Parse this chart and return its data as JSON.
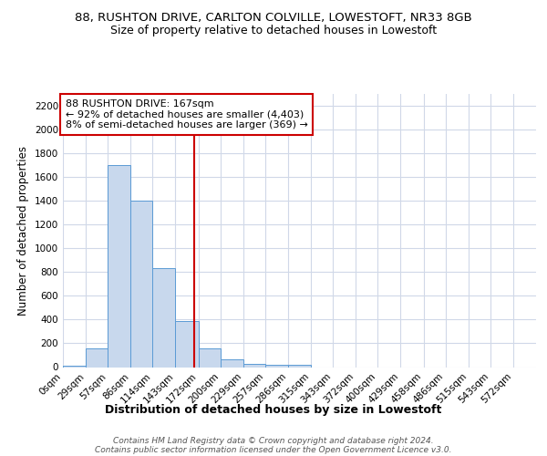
{
  "title1": "88, RUSHTON DRIVE, CARLTON COLVILLE, LOWESTOFT, NR33 8GB",
  "title2": "Size of property relative to detached houses in Lowestoft",
  "xlabel": "Distribution of detached houses by size in Lowestoft",
  "ylabel": "Number of detached properties",
  "bar_color": "#c8d8ed",
  "bar_edge_color": "#5b9bd5",
  "bin_labels": [
    "0sqm",
    "29sqm",
    "57sqm",
    "86sqm",
    "114sqm",
    "143sqm",
    "172sqm",
    "200sqm",
    "229sqm",
    "257sqm",
    "286sqm",
    "315sqm",
    "343sqm",
    "372sqm",
    "400sqm",
    "429sqm",
    "458sqm",
    "486sqm",
    "515sqm",
    "543sqm",
    "572sqm"
  ],
  "bar_heights": [
    15,
    155,
    1700,
    1400,
    835,
    390,
    155,
    65,
    30,
    20,
    20,
    0,
    0,
    0,
    0,
    0,
    0,
    0,
    0,
    0,
    0
  ],
  "bin_edges": [
    0,
    29,
    57,
    86,
    114,
    143,
    172,
    200,
    229,
    257,
    286,
    315,
    343,
    372,
    400,
    429,
    458,
    486,
    515,
    543,
    572,
    601
  ],
  "property_size": 167,
  "property_label": "88 RUSHTON DRIVE: 167sqm",
  "annotation_line1": "← 92% of detached houses are smaller (4,403)",
  "annotation_line2": "8% of semi-detached houses are larger (369) →",
  "vline_color": "#cc0000",
  "annotation_box_facecolor": "#ffffff",
  "annotation_box_edgecolor": "#cc0000",
  "ylim": [
    0,
    2300
  ],
  "yticks": [
    0,
    200,
    400,
    600,
    800,
    1000,
    1200,
    1400,
    1600,
    1800,
    2000,
    2200
  ],
  "bg_color": "#ffffff",
  "grid_color": "#d0d8e8",
  "title1_fontsize": 9.5,
  "title2_fontsize": 9,
  "xlabel_fontsize": 9,
  "ylabel_fontsize": 8.5,
  "tick_fontsize": 7.5,
  "footer_fontsize": 6.5,
  "footer_line1": "Contains HM Land Registry data © Crown copyright and database right 2024.",
  "footer_line2": "Contains public sector information licensed under the Open Government Licence v3.0."
}
